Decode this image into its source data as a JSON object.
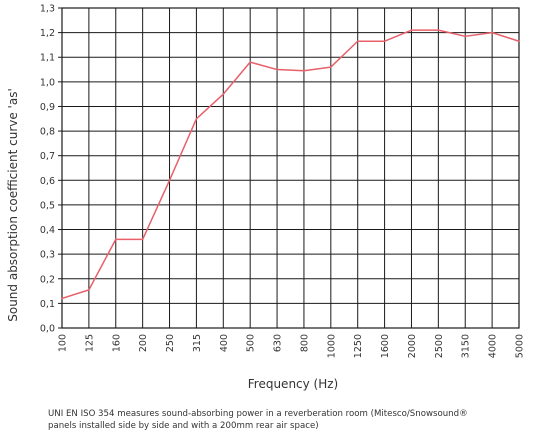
{
  "chart_data": {
    "type": "line",
    "title": "",
    "xlabel": "Frequency (Hz)",
    "ylabel": "Sound absorption coefficient curve 'as'",
    "categories": [
      "100",
      "125",
      "160",
      "200",
      "250",
      "315",
      "400",
      "500",
      "630",
      "800",
      "1000",
      "1250",
      "1600",
      "2000",
      "2500",
      "3150",
      "4000",
      "5000"
    ],
    "series": [
      {
        "values": [
          0.12,
          0.155,
          0.36,
          0.36,
          0.6,
          0.85,
          0.95,
          1.08,
          1.05,
          1.045,
          1.06,
          1.165,
          1.165,
          1.21,
          1.21,
          1.185,
          1.2,
          1.165
        ]
      }
    ],
    "ylim": [
      0,
      1.3
    ],
    "yticks": [
      "0,0",
      "0,1",
      "0,2",
      "0,3",
      "0,4",
      "0,5",
      "0,6",
      "0,7",
      "0,8",
      "0,9",
      "1,0",
      "1,1",
      "1,2",
      "1,3"
    ],
    "grid": true,
    "line_color": "#e8606a",
    "grid_color": "#1a1a1a"
  },
  "caption": {
    "line1": "UNI EN ISO 354 measures sound-absorbing power in  a reverberation room (Mitesco/Snowsound®",
    "line2": "panels installed side by side and with a 200mm rear air space)"
  }
}
